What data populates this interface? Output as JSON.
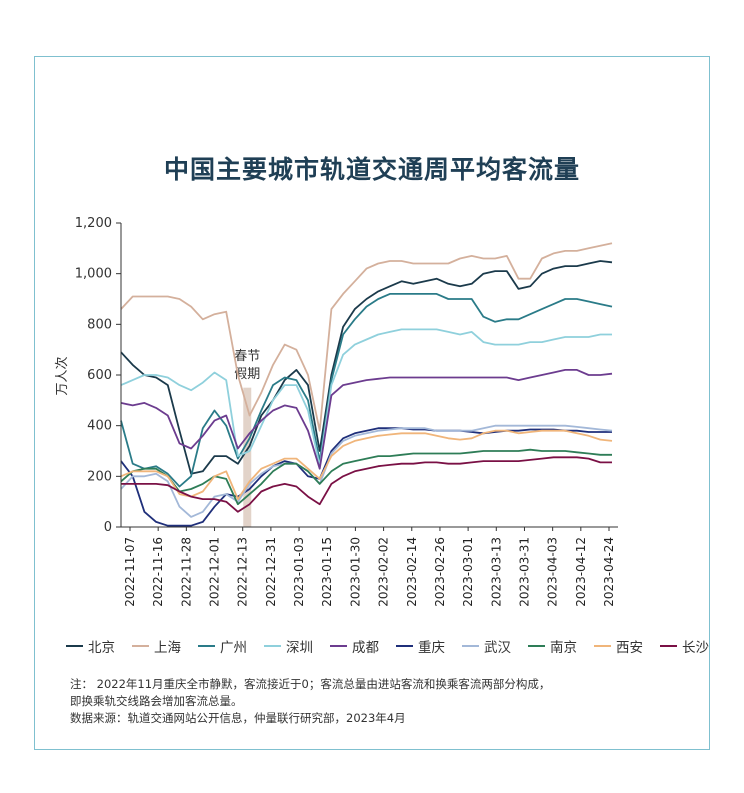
{
  "chart_data": {
    "type": "line",
    "title": "中国主要城市轨道交通周平均客流量",
    "ylabel": "万人次",
    "ylim": [
      0,
      1200
    ],
    "yticks": [
      "0",
      "200",
      "400",
      "600",
      "800",
      "1,000",
      "1,200"
    ],
    "xtick_labels": [
      "2022-11-07",
      "2022-11-16",
      "2022-11-28",
      "2022-12-01",
      "2022-12-13",
      "2022-12-31",
      "2023-01-03",
      "2023-01-15",
      "2023-01-30",
      "2023-02-02",
      "2023-02-14",
      "2023-02-26",
      "2023-03-01",
      "2023-03-13",
      "2023-03-31",
      "2023-04-03",
      "2023-04-12",
      "2023-04-24"
    ],
    "annotation": {
      "line1": "春节",
      "line2": "假期",
      "x": 10.8
    },
    "x": [
      0,
      1,
      2,
      3,
      4,
      5,
      6,
      7,
      8,
      9,
      10,
      11,
      12,
      13,
      14,
      15,
      16,
      17,
      18,
      19,
      20,
      21,
      22,
      23,
      24,
      25,
      26,
      27,
      28,
      29,
      30,
      31,
      32,
      33,
      34,
      35,
      36,
      37,
      38,
      39,
      40,
      41,
      42
    ],
    "series": [
      {
        "name": "北京",
        "color": "#1b3a4b",
        "values": [
          690,
          640,
          600,
          590,
          560,
          380,
          210,
          220,
          280,
          280,
          250,
          320,
          440,
          500,
          580,
          620,
          560,
          300,
          600,
          790,
          860,
          900,
          930,
          950,
          970,
          960,
          970,
          980,
          960,
          950,
          960,
          1000,
          1010,
          1010,
          940,
          950,
          1000,
          1020,
          1030,
          1030,
          1040,
          1050,
          1045
        ]
      },
      {
        "name": "上海",
        "color": "#d4b09c",
        "values": [
          860,
          910,
          910,
          910,
          910,
          900,
          870,
          820,
          840,
          850,
          600,
          440,
          530,
          640,
          720,
          700,
          600,
          380,
          860,
          920,
          970,
          1020,
          1040,
          1050,
          1050,
          1040,
          1040,
          1040,
          1040,
          1060,
          1070,
          1060,
          1060,
          1070,
          980,
          980,
          1060,
          1080,
          1090,
          1090,
          1100,
          1110,
          1120
        ]
      },
      {
        "name": "广州",
        "color": "#2a7b88",
        "values": [
          420,
          250,
          230,
          240,
          210,
          160,
          200,
          390,
          460,
          400,
          270,
          350,
          460,
          560,
          590,
          580,
          500,
          260,
          580,
          760,
          820,
          870,
          900,
          920,
          920,
          920,
          920,
          920,
          900,
          900,
          900,
          830,
          810,
          820,
          820,
          840,
          860,
          880,
          900,
          900,
          890,
          880,
          870
        ]
      },
      {
        "name": "深圳",
        "color": "#8fd0dc",
        "values": [
          560,
          580,
          600,
          600,
          590,
          560,
          540,
          570,
          610,
          580,
          280,
          300,
          400,
          500,
          560,
          560,
          460,
          240,
          560,
          680,
          720,
          740,
          760,
          770,
          780,
          780,
          780,
          780,
          770,
          760,
          770,
          730,
          720,
          720,
          720,
          730,
          730,
          740,
          750,
          750,
          750,
          760,
          760
        ]
      },
      {
        "name": "成都",
        "color": "#6c3c8f",
        "values": [
          490,
          480,
          490,
          470,
          440,
          330,
          310,
          360,
          420,
          440,
          310,
          370,
          420,
          460,
          480,
          470,
          380,
          230,
          520,
          560,
          570,
          580,
          585,
          590,
          590,
          590,
          590,
          590,
          590,
          590,
          590,
          590,
          590,
          590,
          580,
          590,
          600,
          610,
          620,
          620,
          600,
          600,
          605
        ]
      },
      {
        "name": "重庆",
        "color": "#1f2f7a",
        "values": [
          260,
          200,
          60,
          20,
          5,
          5,
          5,
          20,
          80,
          130,
          120,
          150,
          200,
          240,
          260,
          250,
          200,
          190,
          300,
          350,
          370,
          380,
          390,
          390,
          390,
          385,
          385,
          380,
          380,
          380,
          375,
          370,
          375,
          380,
          380,
          385,
          385,
          385,
          380,
          380,
          375,
          375,
          375
        ]
      },
      {
        "name": "武汉",
        "color": "#a3b8d8",
        "values": [
          150,
          200,
          200,
          210,
          180,
          80,
          40,
          60,
          120,
          130,
          100,
          170,
          210,
          240,
          250,
          250,
          220,
          170,
          290,
          340,
          360,
          370,
          380,
          385,
          390,
          390,
          390,
          380,
          380,
          380,
          380,
          390,
          400,
          400,
          400,
          400,
          400,
          400,
          400,
          395,
          390,
          385,
          380
        ]
      },
      {
        "name": "南京",
        "color": "#2e7d57",
        "values": [
          180,
          220,
          230,
          230,
          200,
          140,
          150,
          170,
          200,
          190,
          90,
          130,
          170,
          220,
          250,
          250,
          220,
          170,
          220,
          250,
          260,
          270,
          280,
          280,
          285,
          290,
          290,
          290,
          290,
          290,
          295,
          300,
          300,
          300,
          300,
          305,
          300,
          300,
          300,
          295,
          290,
          285,
          285
        ]
      },
      {
        "name": "西安",
        "color": "#f0b57a",
        "values": [
          200,
          220,
          220,
          220,
          200,
          130,
          120,
          140,
          200,
          220,
          110,
          180,
          230,
          250,
          270,
          270,
          230,
          190,
          280,
          320,
          340,
          350,
          360,
          365,
          370,
          370,
          370,
          360,
          350,
          345,
          350,
          370,
          380,
          380,
          370,
          375,
          380,
          380,
          380,
          370,
          360,
          345,
          340
        ]
      },
      {
        "name": "长沙",
        "color": "#7a1045",
        "values": [
          170,
          170,
          170,
          170,
          165,
          140,
          120,
          110,
          110,
          100,
          60,
          90,
          140,
          160,
          170,
          160,
          120,
          90,
          170,
          200,
          220,
          230,
          240,
          245,
          250,
          250,
          255,
          255,
          250,
          250,
          255,
          260,
          260,
          260,
          260,
          265,
          270,
          275,
          275,
          275,
          270,
          255,
          255
        ]
      }
    ]
  },
  "legend_title_hidden": "",
  "notes": {
    "line1": "注：  2022年11月重庆全市静默，客流接近于0；客流总量由进站客流和换乘客流两部分构成，",
    "line2": "即换乘轨交线路会增加客流总量。",
    "source": "数据来源：轨道交通网站公开信息，仲量联行研究部，2023年4月"
  }
}
